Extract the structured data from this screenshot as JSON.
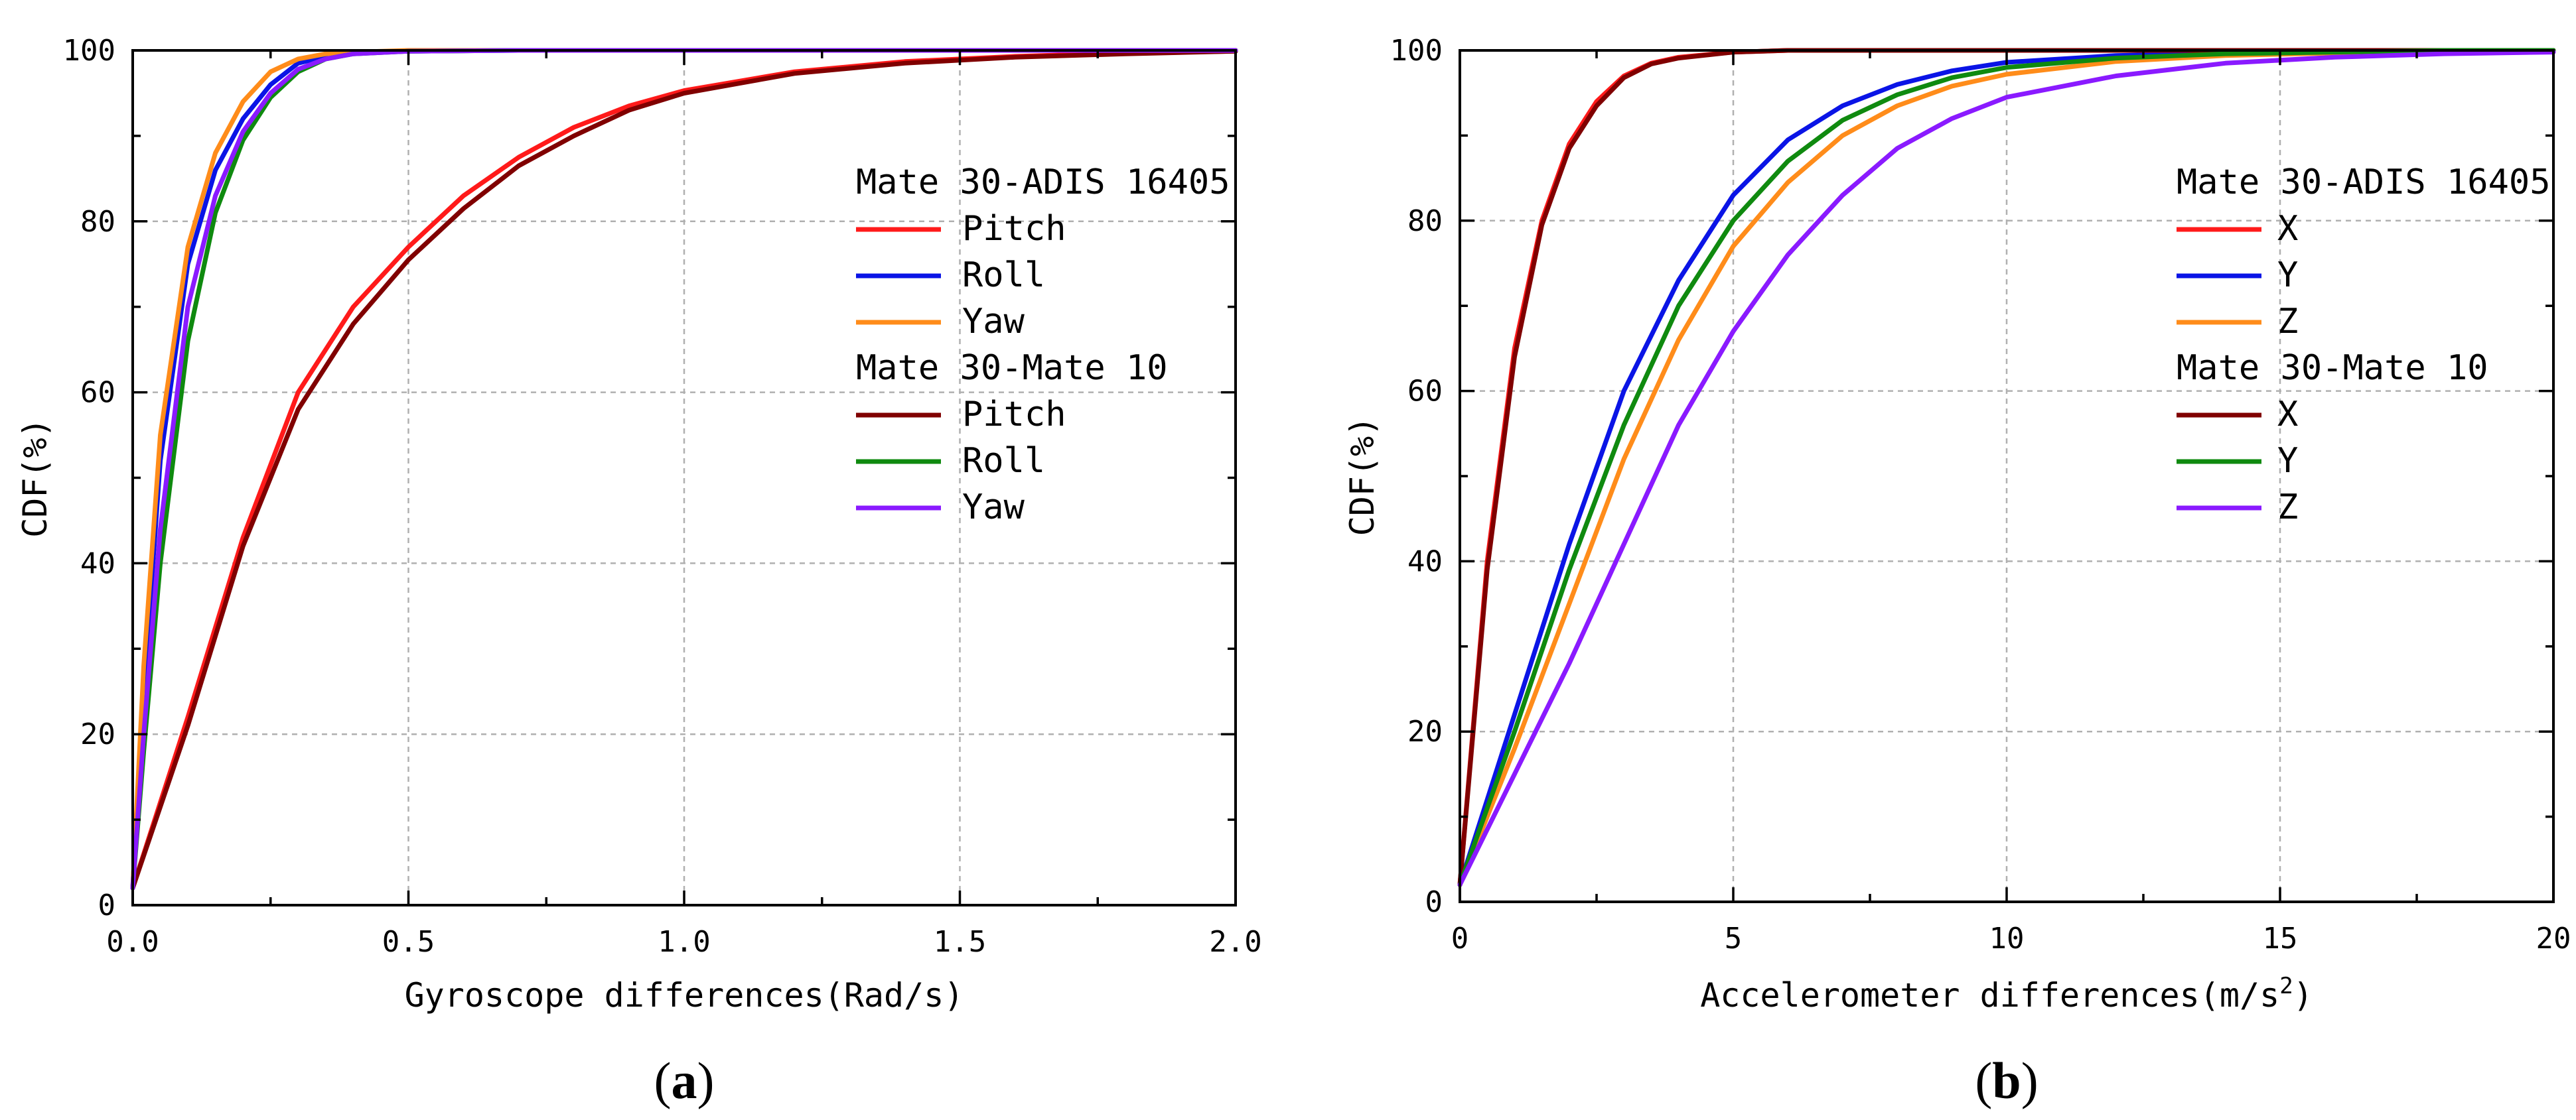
{
  "chart_data": [
    {
      "id": "a",
      "type": "line",
      "panel_label": "a",
      "title": "",
      "xlabel": "Gyroscope differences(Rad/s)",
      "ylabel": "CDF(%)",
      "xlim": [
        0,
        2.0
      ],
      "ylim": [
        0,
        100
      ],
      "xticks": [
        0.0,
        0.5,
        1.0,
        1.5,
        2.0
      ],
      "xtick_labels": [
        "0.0",
        "0.5",
        "1.0",
        "1.5",
        "2.0"
      ],
      "yticks": [
        0,
        20,
        40,
        60,
        80,
        100
      ],
      "ytick_labels": [
        "0",
        "20",
        "40",
        "60",
        "80",
        "100"
      ],
      "grid": true,
      "legend_position": "right",
      "legend_groups": [
        {
          "title": "Mate 30-ADIS 16405",
          "entries": [
            "Pitch",
            "Roll",
            "Yaw"
          ]
        },
        {
          "title": "Mate 30-Mate 10",
          "entries": [
            "Pitch",
            "Roll",
            "Yaw"
          ]
        }
      ],
      "series": [
        {
          "group": "Mate 30-ADIS 16405",
          "name": "Pitch",
          "color": "#ff1a1a",
          "x": [
            0,
            0.1,
            0.2,
            0.3,
            0.4,
            0.5,
            0.6,
            0.7,
            0.8,
            0.9,
            1.0,
            1.2,
            1.4,
            1.6,
            1.8,
            2.0
          ],
          "y": [
            2,
            22,
            43,
            60,
            70,
            77,
            83,
            87.5,
            91,
            93.5,
            95.3,
            97.5,
            98.7,
            99.3,
            99.7,
            99.9
          ]
        },
        {
          "group": "Mate 30-ADIS 16405",
          "name": "Roll",
          "color": "#0a14e6",
          "x": [
            0,
            0.02,
            0.05,
            0.1,
            0.15,
            0.2,
            0.25,
            0.3,
            0.35,
            0.4,
            0.5,
            0.7,
            1.0,
            2.0
          ],
          "y": [
            2,
            25,
            52,
            75,
            86,
            92,
            96,
            98.5,
            99.3,
            99.7,
            99.9,
            100,
            100,
            100
          ]
        },
        {
          "group": "Mate 30-ADIS 16405",
          "name": "Yaw",
          "color": "#ff8c1a",
          "x": [
            0,
            0.02,
            0.05,
            0.1,
            0.15,
            0.2,
            0.25,
            0.3,
            0.35,
            0.4,
            0.5,
            0.7,
            1.0,
            2.0
          ],
          "y": [
            2,
            28,
            55,
            77,
            88,
            94,
            97.5,
            99,
            99.6,
            99.8,
            100,
            100,
            100,
            100
          ]
        },
        {
          "group": "Mate 30-Mate 10",
          "name": "Pitch",
          "color": "#800000",
          "x": [
            0,
            0.1,
            0.2,
            0.3,
            0.4,
            0.5,
            0.6,
            0.7,
            0.8,
            0.9,
            1.0,
            1.2,
            1.4,
            1.6,
            1.8,
            2.0
          ],
          "y": [
            2,
            21,
            42,
            58,
            68,
            75.5,
            81.5,
            86.5,
            90,
            93,
            95,
            97.3,
            98.5,
            99.2,
            99.6,
            99.9
          ]
        },
        {
          "group": "Mate 30-Mate 10",
          "name": "Roll",
          "color": "#0f8a0f",
          "x": [
            0,
            0.02,
            0.05,
            0.1,
            0.15,
            0.2,
            0.25,
            0.3,
            0.35,
            0.4,
            0.5,
            0.7,
            1.0,
            2.0
          ],
          "y": [
            2,
            18,
            40,
            66,
            81,
            89.5,
            94.5,
            97.5,
            99,
            99.6,
            99.9,
            100,
            100,
            100
          ]
        },
        {
          "group": "Mate 30-Mate 10",
          "name": "Yaw",
          "color": "#8a1aff",
          "x": [
            0,
            0.02,
            0.05,
            0.1,
            0.15,
            0.2,
            0.25,
            0.3,
            0.35,
            0.4,
            0.5,
            0.7,
            1.0,
            2.0
          ],
          "y": [
            2,
            20,
            44,
            70,
            83,
            90.5,
            95,
            97.8,
            99,
            99.6,
            99.9,
            100,
            100,
            100
          ]
        }
      ]
    },
    {
      "id": "b",
      "type": "line",
      "panel_label": "b",
      "title": "",
      "xlabel": "Accelerometer differences(m/s",
      "xlabel_superscript": "2",
      "xlabel_suffix": ")",
      "ylabel": "CDF(%)",
      "xlim": [
        0,
        20
      ],
      "ylim": [
        0,
        100
      ],
      "xticks": [
        0,
        5,
        10,
        15,
        20
      ],
      "xtick_labels": [
        "0",
        "5",
        "10",
        "15",
        "20"
      ],
      "yticks": [
        0,
        20,
        40,
        60,
        80,
        100
      ],
      "ytick_labels": [
        "0",
        "20",
        "40",
        "60",
        "80",
        "100"
      ],
      "grid": true,
      "legend_position": "right",
      "legend_groups": [
        {
          "title": "Mate 30-ADIS 16405",
          "entries": [
            "X",
            "Y",
            "Z"
          ]
        },
        {
          "title": "Mate 30-Mate 10",
          "entries": [
            "X",
            "Y",
            "Z"
          ]
        }
      ],
      "series": [
        {
          "group": "Mate 30-ADIS 16405",
          "name": "X",
          "color": "#ff1a1a",
          "x": [
            0,
            0.5,
            1,
            1.5,
            2,
            2.5,
            3,
            3.5,
            4,
            5,
            6,
            8,
            10,
            20
          ],
          "y": [
            2,
            40,
            65,
            80,
            89,
            94,
            97,
            98.5,
            99.2,
            99.8,
            100,
            100,
            100,
            100
          ]
        },
        {
          "group": "Mate 30-ADIS 16405",
          "name": "Y",
          "color": "#0a14e6",
          "x": [
            0,
            1,
            2,
            3,
            4,
            5,
            6,
            7,
            8,
            9,
            10,
            12,
            14,
            16,
            18,
            20
          ],
          "y": [
            2,
            22,
            42,
            60,
            73,
            83,
            89.5,
            93.5,
            96,
            97.6,
            98.6,
            99.4,
            99.7,
            99.9,
            100,
            100
          ]
        },
        {
          "group": "Mate 30-ADIS 16405",
          "name": "Z",
          "color": "#ff8c1a",
          "x": [
            0,
            1,
            2,
            3,
            4,
            5,
            6,
            7,
            8,
            9,
            10,
            12,
            14,
            16,
            18,
            20
          ],
          "y": [
            2,
            18,
            35,
            52,
            66,
            77,
            84.5,
            90,
            93.5,
            95.8,
            97.2,
            98.7,
            99.4,
            99.7,
            99.9,
            100
          ]
        },
        {
          "group": "Mate 30-Mate 10",
          "name": "X",
          "color": "#800000",
          "x": [
            0,
            0.5,
            1,
            1.5,
            2,
            2.5,
            3,
            3.5,
            4,
            5,
            6,
            8,
            10,
            20
          ],
          "y": [
            2,
            39,
            64,
            79.5,
            88.5,
            93.5,
            96.8,
            98.4,
            99.1,
            99.8,
            100,
            100,
            100,
            100
          ]
        },
        {
          "group": "Mate 30-Mate 10",
          "name": "Y",
          "color": "#0f8a0f",
          "x": [
            0,
            1,
            2,
            3,
            4,
            5,
            6,
            7,
            8,
            9,
            10,
            12,
            14,
            16,
            18,
            20
          ],
          "y": [
            2,
            20,
            39,
            56,
            70,
            80,
            87,
            91.8,
            94.8,
            96.8,
            98,
            99.1,
            99.6,
            99.8,
            100,
            100
          ]
        },
        {
          "group": "Mate 30-Mate 10",
          "name": "Z",
          "color": "#8a1aff",
          "x": [
            0,
            1,
            2,
            3,
            4,
            5,
            6,
            7,
            8,
            9,
            10,
            12,
            14,
            16,
            18,
            20
          ],
          "y": [
            2,
            15,
            28,
            42,
            56,
            67,
            76,
            83,
            88.5,
            92,
            94.5,
            97,
            98.5,
            99.2,
            99.6,
            99.8
          ]
        }
      ]
    }
  ]
}
